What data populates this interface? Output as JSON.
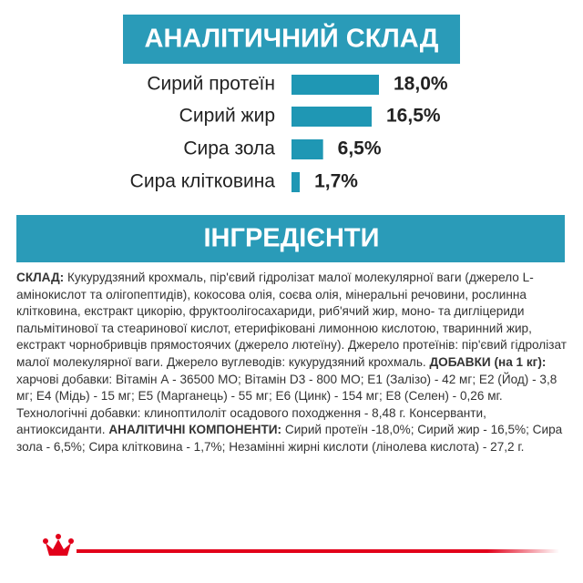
{
  "chart_data": {
    "type": "bar",
    "orientation": "horizontal",
    "title": "АНАЛІТИЧНИЙ СКЛАД",
    "categories": [
      "Сирий протеїн",
      "Сирий жир",
      "Сира зола",
      "Сира клітковина"
    ],
    "values": [
      18.0,
      16.5,
      6.5,
      1.7
    ],
    "value_labels": [
      "18,0%",
      "16,5%",
      "6,5%",
      "1,7%"
    ],
    "color": "#1f97b4"
  },
  "ingredients": {
    "title": "ІНГРЕДІЄНТИ",
    "segments": [
      {
        "text": "СКЛАД:",
        "bold": true
      },
      {
        "text": " Кукурудзяний крохмаль, пір'євий гідролізат малої молекулярної ваги (джерело L-амінокислот та олігопептидів), кокосова олія, соєва олія, мінеральні речовини, рослинна клітковина, екстракт цикорію, фруктоолігосахариди, риб'ячий жир, моно- та дигліцериди пальмітинової та стеаринової кислот, етерифіковані лимонною кислотою, тваринний жир, екстракт чорнобривців прямостоячих (джерело лютеїну). Джерело протеїнів: пір'євий гідролізат малої молекулярної ваги. Джерело вуглеводів: кукурудзяний крохмаль. ",
        "bold": false
      },
      {
        "text": "ДОБАВКИ (на 1 кг):",
        "bold": true
      },
      {
        "text": " харчові добавки: Вітамін А - 36500 МО; Вітамін D3 - 800 МО; Е1 (Залізо) - 42  мг; Е2 (Йод) - 3,8  мг; Е4 (Мідь) - 15  мг; Е5 (Марганець) - 55  мг; Е6 (Цинк) - 154 мг; Е8 (Селен) - 0,26 мг. Технологічні добавки: клиноптилоліт осадового походження - 8,48 г. Консерванти, антиоксиданти. ",
        "bold": false
      },
      {
        "text": "АНАЛІТИЧНІ КОМПОНЕНТИ:",
        "bold": true
      },
      {
        "text": " Сирий протеїн -18,0%; Сирий жир - 16,5%; Сира зола - 6,5%; Сира клітковина - 1,7%; Незамінні жирні кислоти (лінолева кислота) - 27,2 г.",
        "bold": false
      }
    ]
  }
}
